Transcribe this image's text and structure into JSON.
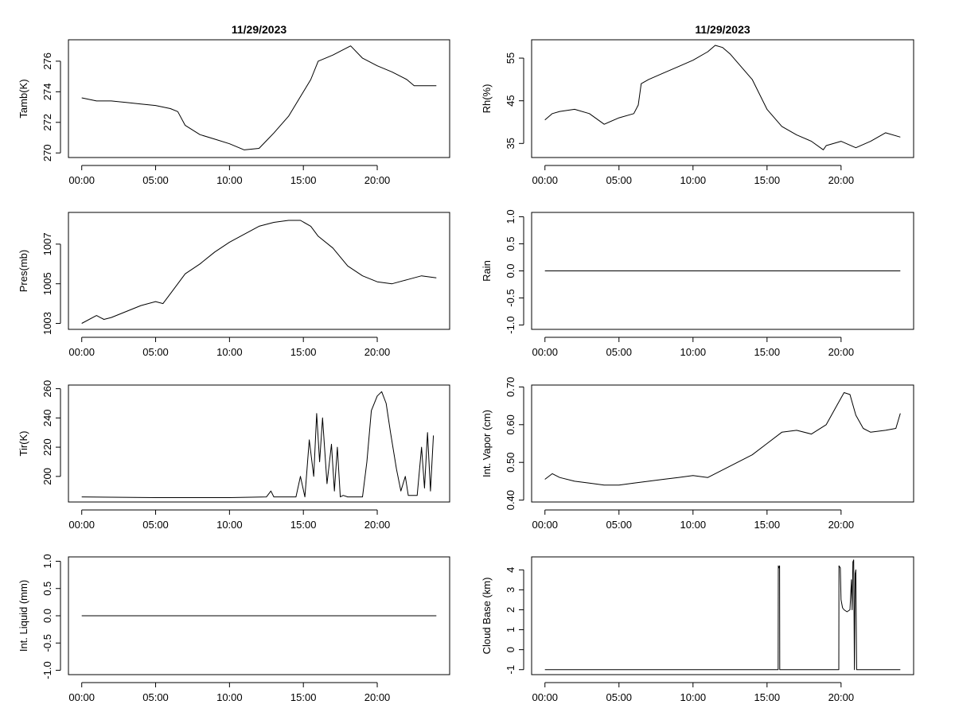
{
  "chart_data": [
    {
      "type": "line",
      "title": "11/29/2023",
      "ylabel": "Tamb(K)",
      "xlabel": "",
      "x_ticks": [
        "00:00",
        "05:00",
        "10:00",
        "15:00",
        "20:00"
      ],
      "y_ticks": [
        "270",
        "272",
        "274",
        "276"
      ],
      "ylim": [
        269.7,
        277.4
      ],
      "xlim_hours": [
        -0.9,
        24.9
      ],
      "x_hours": [
        0,
        1,
        2,
        3,
        4,
        5,
        6,
        6.5,
        7,
        8,
        9,
        10,
        11,
        12,
        12.5,
        13,
        14,
        15,
        15.5,
        16,
        17,
        18,
        18.2,
        19,
        20,
        21,
        22,
        22.5,
        23,
        24
      ],
      "y": [
        273.6,
        273.4,
        273.4,
        273.3,
        273.2,
        273.1,
        272.9,
        272.7,
        271.8,
        271.2,
        270.9,
        270.6,
        270.2,
        270.3,
        270.8,
        271.3,
        272.4,
        274.0,
        274.8,
        276.0,
        276.4,
        276.9,
        277.0,
        276.2,
        275.7,
        275.3,
        274.8,
        274.4,
        274.4,
        274.4
      ],
      "grid": false
    },
    {
      "type": "line",
      "title": "11/29/2023",
      "ylabel": "Rh(%)",
      "xlabel": "",
      "x_ticks": [
        "00:00",
        "05:00",
        "10:00",
        "15:00",
        "20:00"
      ],
      "y_ticks": [
        "35",
        "45",
        "55"
      ],
      "ylim": [
        31.7,
        59.3
      ],
      "xlim_hours": [
        -0.9,
        24.9
      ],
      "x_hours": [
        0,
        0.5,
        1,
        2,
        3,
        4,
        5,
        6,
        6.3,
        6.5,
        7,
        8,
        9,
        10,
        11,
        11.5,
        12,
        12.5,
        13,
        14,
        15,
        16,
        17,
        18,
        18.8,
        19,
        20,
        21,
        22,
        23,
        24
      ],
      "y": [
        40.5,
        42.0,
        42.5,
        43.0,
        42.0,
        39.5,
        41.0,
        42.0,
        44.0,
        49.0,
        50.0,
        51.5,
        53.0,
        54.5,
        56.5,
        58.0,
        57.5,
        56.0,
        54.0,
        50.0,
        43.0,
        39.0,
        37.0,
        35.5,
        33.5,
        34.5,
        35.5,
        34.0,
        35.5,
        37.5,
        36.5
      ],
      "grid": false
    },
    {
      "type": "line",
      "title": "",
      "ylabel": "Pres(mb)",
      "xlabel": "",
      "x_ticks": [
        "00:00",
        "05:00",
        "10:00",
        "15:00",
        "20:00"
      ],
      "y_ticks": [
        "1003",
        "1005",
        "1007"
      ],
      "ylim": [
        1002.7,
        1008.6
      ],
      "xlim_hours": [
        -0.9,
        24.9
      ],
      "x_hours": [
        0,
        1,
        1.5,
        2,
        3,
        4,
        5,
        5.5,
        6,
        7,
        8,
        9,
        10,
        11,
        12,
        13,
        14,
        14.8,
        15.5,
        16,
        17,
        18,
        19,
        20,
        21,
        22,
        23,
        24
      ],
      "y": [
        1003.0,
        1003.4,
        1003.2,
        1003.3,
        1003.6,
        1003.9,
        1004.1,
        1004.0,
        1004.5,
        1005.5,
        1006.0,
        1006.6,
        1007.1,
        1007.5,
        1007.9,
        1008.1,
        1008.2,
        1008.2,
        1007.9,
        1007.4,
        1006.8,
        1005.9,
        1005.4,
        1005.1,
        1005.0,
        1005.2,
        1005.4,
        1005.3
      ],
      "grid": false
    },
    {
      "type": "line",
      "title": "",
      "ylabel": "Rain",
      "xlabel": "",
      "x_ticks": [
        "00:00",
        "05:00",
        "10:00",
        "15:00",
        "20:00"
      ],
      "y_ticks": [
        "-1.0",
        "-0.5",
        "0.0",
        "0.5",
        "1.0"
      ],
      "ylim": [
        -1.08,
        1.08
      ],
      "xlim_hours": [
        -0.9,
        24.9
      ],
      "x_hours": [
        0,
        24
      ],
      "y": [
        0,
        0
      ],
      "grid": false
    },
    {
      "type": "line",
      "title": "",
      "ylabel": "Tir(K)",
      "xlabel": "",
      "x_ticks": [
        "00:00",
        "05:00",
        "10:00",
        "15:00",
        "20:00"
      ],
      "y_ticks": [
        "200",
        "220",
        "240",
        "260"
      ],
      "ylim": [
        182.5,
        262.5
      ],
      "xlim_hours": [
        -0.9,
        24.9
      ],
      "x_hours": [
        0,
        5,
        10,
        12.5,
        12.8,
        13.0,
        14.5,
        14.8,
        15.1,
        15.4,
        15.7,
        15.9,
        16.1,
        16.3,
        16.6,
        16.9,
        17.1,
        17.3,
        17.5,
        17.7,
        18,
        19,
        19.3,
        19.6,
        20,
        20.3,
        20.6,
        20.9,
        21.3,
        21.6,
        21.9,
        22.1,
        22.4,
        22.7,
        23.0,
        23.2,
        23.4,
        23.6,
        23.8
      ],
      "y": [
        186,
        185.5,
        185.5,
        186,
        190,
        186,
        186,
        200,
        186,
        225,
        200,
        243,
        210,
        240,
        195,
        222,
        190,
        220,
        186,
        187,
        186,
        186,
        210,
        245,
        255,
        258,
        250,
        230,
        205,
        190,
        200,
        187,
        187,
        187,
        220,
        192,
        230,
        190,
        228
      ],
      "grid": false
    },
    {
      "type": "line",
      "title": "",
      "ylabel": "Int. Vapor (cm)",
      "xlabel": "",
      "x_ticks": [
        "00:00",
        "05:00",
        "10:00",
        "15:00",
        "20:00"
      ],
      "y_ticks": [
        "0.40",
        "0.50",
        "0.60",
        "0.70"
      ],
      "ylim": [
        0.395,
        0.705
      ],
      "xlim_hours": [
        -0.9,
        24.9
      ],
      "x_hours": [
        0,
        0.5,
        1,
        2,
        3,
        4,
        5,
        6,
        7,
        8,
        9,
        10,
        11,
        12,
        13,
        14,
        15,
        16,
        17,
        18,
        19,
        19.7,
        20.2,
        20.6,
        21,
        21.5,
        22,
        23,
        23.7,
        24
      ],
      "y": [
        0.455,
        0.47,
        0.46,
        0.45,
        0.445,
        0.44,
        0.44,
        0.445,
        0.45,
        0.455,
        0.46,
        0.465,
        0.46,
        0.48,
        0.5,
        0.52,
        0.55,
        0.58,
        0.585,
        0.575,
        0.6,
        0.65,
        0.685,
        0.68,
        0.625,
        0.59,
        0.58,
        0.585,
        0.59,
        0.63
      ],
      "grid": false
    },
    {
      "type": "line",
      "title": "",
      "ylabel": "Int. Liquid (mm)",
      "xlabel": "",
      "x_ticks": [
        "00:00",
        "05:00",
        "10:00",
        "15:00",
        "20:00"
      ],
      "y_ticks": [
        "-1.0",
        "-0.5",
        "0.0",
        "0.5",
        "1.0"
      ],
      "ylim": [
        -1.08,
        1.08
      ],
      "xlim_hours": [
        -0.9,
        24.9
      ],
      "x_hours": [
        0,
        24
      ],
      "y": [
        0,
        0
      ],
      "grid": false
    },
    {
      "type": "line",
      "title": "",
      "ylabel": "Cloud Base (km)",
      "xlabel": "",
      "x_ticks": [
        "00:00",
        "05:00",
        "10:00",
        "15:00",
        "20:00"
      ],
      "y_ticks": [
        "-1",
        "0",
        "1",
        "2",
        "3",
        "4"
      ],
      "ylim": [
        -1.25,
        4.65
      ],
      "xlim_hours": [
        -0.9,
        24.9
      ],
      "x_hours": [
        0,
        15.75,
        15.76,
        15.8,
        15.85,
        15.86,
        19.85,
        19.86,
        19.95,
        20.0,
        20.1,
        20.2,
        20.4,
        20.6,
        20.7,
        20.75,
        20.8,
        20.85,
        20.9,
        20.95,
        21.0,
        21.05,
        21.06,
        24
      ],
      "y": [
        -1,
        -1,
        4.2,
        4.1,
        4.2,
        -1,
        -1,
        4.2,
        4.1,
        2.5,
        2.1,
        2.0,
        1.9,
        2.0,
        3.5,
        2.0,
        4.4,
        4.5,
        -1,
        3.8,
        4.0,
        -1,
        -1,
        -1
      ],
      "grid": false
    }
  ]
}
